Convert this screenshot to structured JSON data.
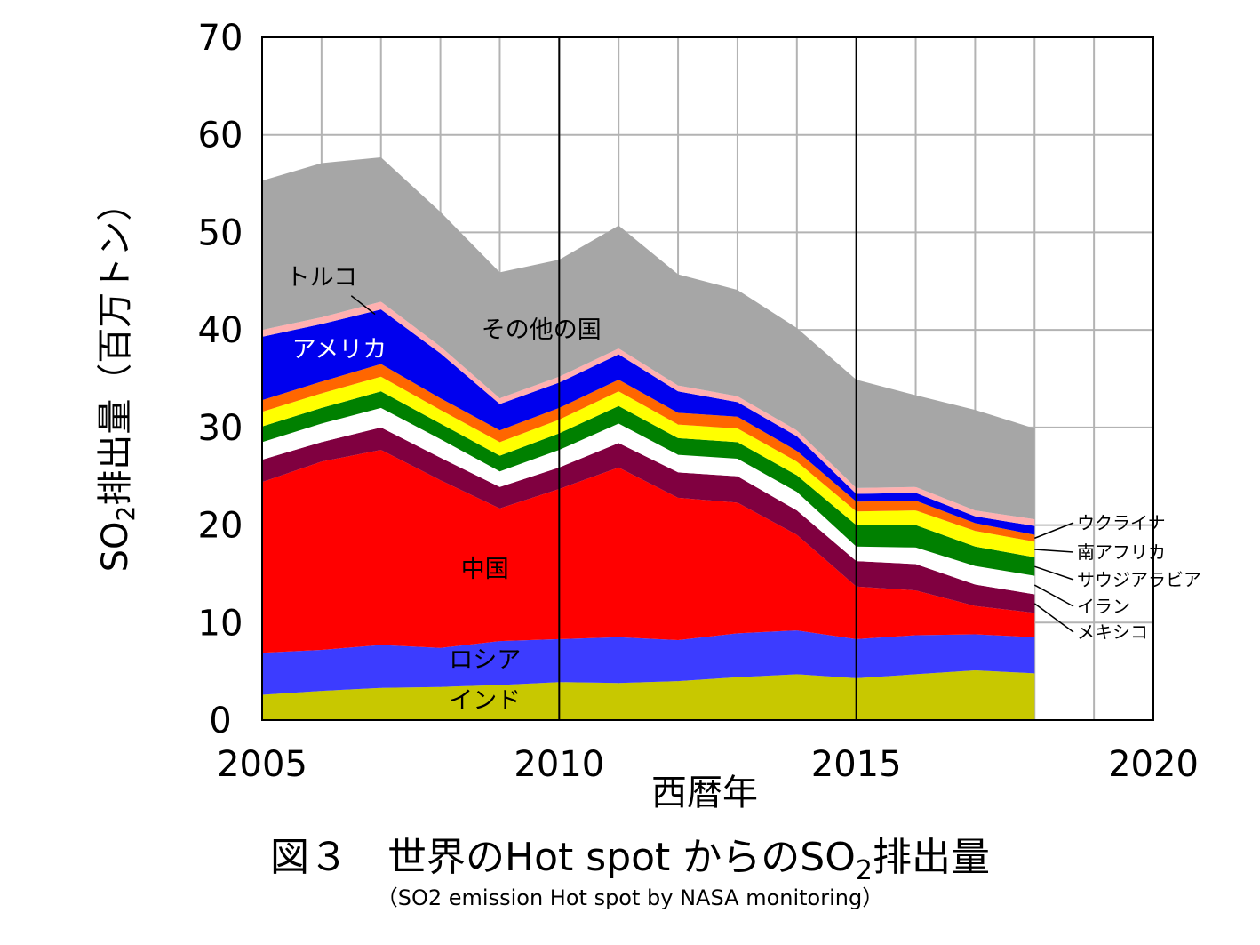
{
  "chart_data": {
    "type": "area",
    "stacked": true,
    "x": [
      2005,
      2006,
      2007,
      2008,
      2009,
      2010,
      2011,
      2012,
      2013,
      2014,
      2015,
      2016,
      2017,
      2018
    ],
    "xlim": [
      2005,
      2020
    ],
    "ylim": [
      0,
      70
    ],
    "x_ticks": [
      "2005",
      "2010",
      "2015",
      "2020"
    ],
    "y_ticks": [
      "0",
      "10",
      "20",
      "30",
      "40",
      "50",
      "60",
      "70"
    ],
    "xlabel": "西暦年",
    "ylabel_pre": "SO",
    "ylabel_sub": "2",
    "ylabel_post": "排出量（百万トン）",
    "grid": true,
    "series": [
      {
        "name": "インド",
        "color": "#c8c800",
        "values": [
          2.6,
          3.0,
          3.3,
          3.4,
          3.6,
          3.9,
          3.8,
          4.0,
          4.4,
          4.7,
          4.3,
          4.7,
          5.1,
          4.8
        ]
      },
      {
        "name": "ロシア",
        "color": "#3c3cff",
        "values": [
          4.3,
          4.2,
          4.4,
          4.0,
          4.5,
          4.4,
          4.7,
          4.2,
          4.5,
          4.5,
          4.0,
          4.0,
          3.7,
          3.7
        ]
      },
      {
        "name": "中国",
        "color": "#ff0000",
        "values": [
          17.5,
          19.3,
          20.0,
          17.2,
          13.6,
          15.4,
          17.4,
          14.6,
          13.4,
          9.8,
          5.4,
          4.6,
          2.9,
          2.5
        ]
      },
      {
        "name": "メキシコ",
        "color": "#800040",
        "values": [
          2.3,
          2.0,
          2.3,
          2.3,
          2.2,
          2.2,
          2.5,
          2.6,
          2.7,
          2.5,
          2.6,
          2.7,
          2.2,
          1.9
        ]
      },
      {
        "name": "イラン",
        "color": "#ffffff",
        "values": [
          1.8,
          1.9,
          2.0,
          1.9,
          1.6,
          1.8,
          2.0,
          1.8,
          1.8,
          1.9,
          1.5,
          1.7,
          1.9,
          1.9
        ]
      },
      {
        "name": "サウジアラビア",
        "color": "#008000",
        "values": [
          1.6,
          1.6,
          1.7,
          1.6,
          1.6,
          1.7,
          1.8,
          1.7,
          1.7,
          1.7,
          2.2,
          2.3,
          2.0,
          1.9
        ]
      },
      {
        "name": "南アフリカ",
        "color": "#ffff00",
        "values": [
          1.5,
          1.5,
          1.5,
          1.4,
          1.4,
          1.4,
          1.5,
          1.4,
          1.4,
          1.4,
          1.4,
          1.5,
          1.6,
          1.6
        ]
      },
      {
        "name": "ウクライナ",
        "color": "#ff6600",
        "values": [
          1.2,
          1.2,
          1.3,
          1.2,
          1.2,
          1.2,
          1.2,
          1.2,
          1.2,
          1.1,
          1.0,
          1.0,
          0.8,
          0.7
        ]
      },
      {
        "name": "アメリカ",
        "color": "#0000ee",
        "values": [
          6.5,
          5.9,
          5.6,
          4.6,
          2.7,
          2.6,
          2.6,
          2.2,
          1.5,
          1.5,
          0.8,
          0.8,
          0.7,
          0.9
        ]
      },
      {
        "name": "トルコ",
        "color": "#ffb0b0",
        "values": [
          0.7,
          0.7,
          0.8,
          0.7,
          0.6,
          0.6,
          0.6,
          0.6,
          0.6,
          0.6,
          0.6,
          0.6,
          0.6,
          0.7
        ]
      },
      {
        "name": "その他の国",
        "color": "#a6a6a6",
        "values": [
          15.3,
          15.8,
          14.8,
          13.8,
          12.9,
          12.0,
          12.6,
          11.4,
          10.9,
          10.5,
          11.1,
          9.4,
          10.3,
          9.3
        ]
      }
    ]
  },
  "caption": {
    "title_pre": "図３　世界のHot spot からのSO",
    "title_sub": "2",
    "title_post": "排出量",
    "subtitle": "（SO2 emission Hot spot by NASA monitoring）"
  }
}
